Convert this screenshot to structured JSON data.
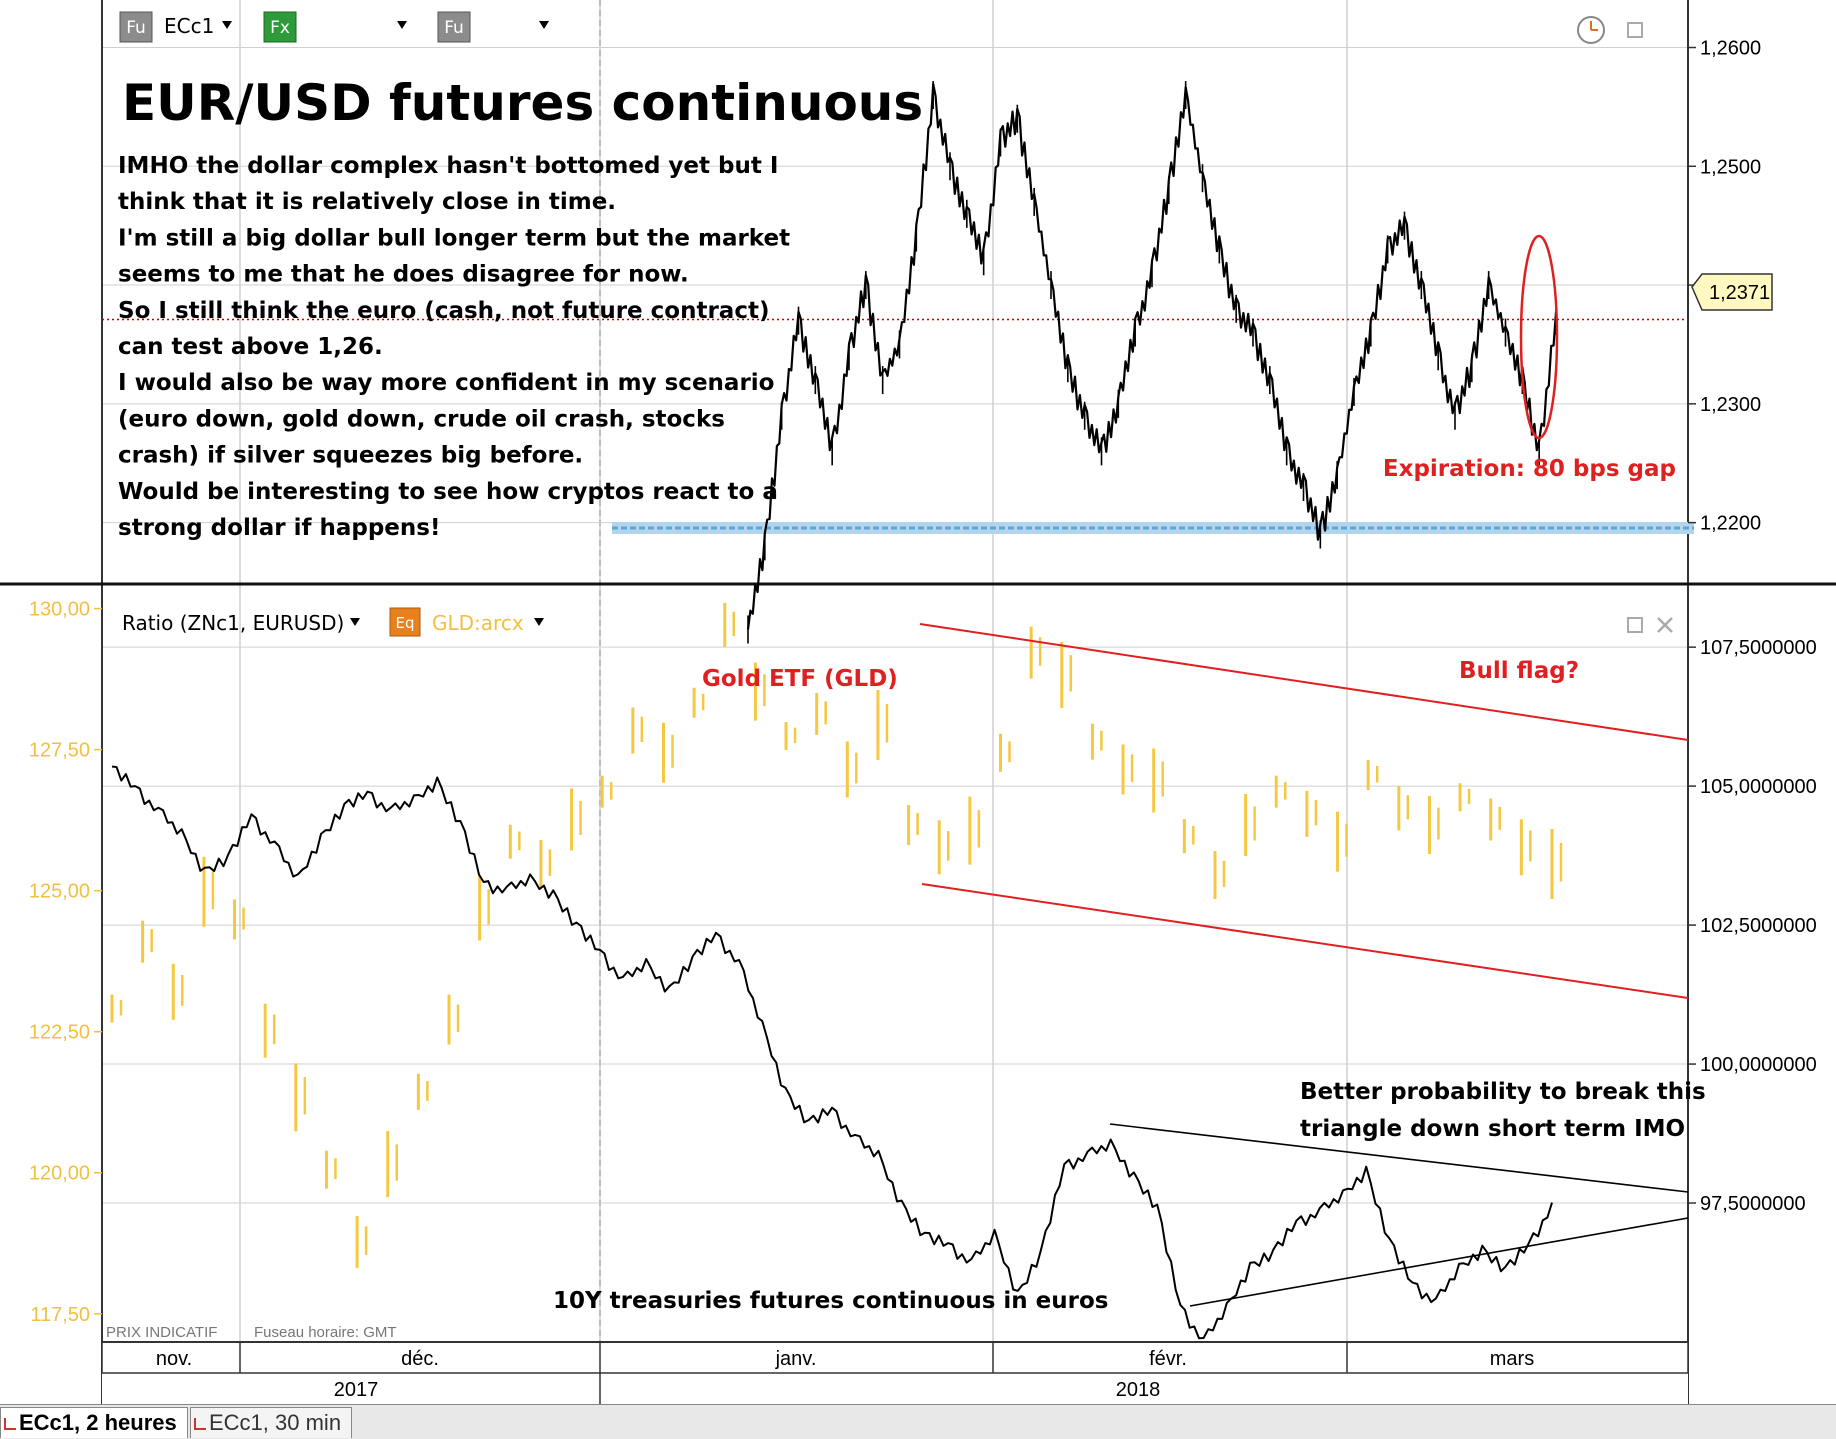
{
  "top_toolbar": {
    "symbol_1_badge": "Fu",
    "symbol_1": "ECc1",
    "symbol_2_badge": "Fx",
    "symbol_3_badge": "Fu"
  },
  "bottom_toolbar": {
    "series_1": "Ratio (ZNc1, EURUSD)",
    "series_2_badge": "Eq",
    "series_2": "GLD:arcx"
  },
  "annotations": {
    "headline": "EUR/USD futures continuous",
    "commentary": [
      "IMHO the dollar complex hasn't bottomed yet but I",
      "think that it is relatively close in time.",
      "I'm still a big dollar bull longer term but the market",
      "seems to me that he does disagree for now.",
      "So I still think the euro (cash, not future contract)",
      "can test above 1,26.",
      "I would also be way more confident in my scenario",
      "(euro down, gold down, crude oil crash, stocks",
      "crash) if silver squeezes big before.",
      "Would be interesting to see how cryptos react to a",
      "strong dollar if happens!"
    ],
    "expiration": "Expiration: 80 bps gap",
    "gold_label": "Gold ETF (GLD)",
    "bull_flag": "Bull flag?",
    "triangle_1": "Better probability to break this",
    "triangle_2": "triangle down short term IMO",
    "treasuries": "10Y treasuries futures continuous in euros",
    "footer_price": "PRIX INDICATIF",
    "footer_tz": "Fuseau horaire: GMT"
  },
  "tabs": [
    {
      "label": "ECc1, 2 heures",
      "active": true
    },
    {
      "label": "ECc1, 30 min",
      "active": false
    }
  ],
  "colors": {
    "eurusd": "#000000",
    "ratio": "#000000",
    "gld": "#f5c842",
    "annotation_red": "#e02020",
    "price_line": "#cc0000",
    "grid": "#c8c8c8"
  },
  "chart_data": [
    {
      "type": "line",
      "series": [
        {
          "name": "ECc1",
          "values": [
            1.211,
            1.218,
            1.229,
            1.237,
            1.232,
            1.226,
            1.234,
            1.24,
            1.232,
            1.235,
            1.244,
            1.256,
            1.25,
            1.246,
            1.242,
            1.252,
            1.254,
            1.247,
            1.24,
            1.233,
            1.229,
            1.226,
            1.23,
            1.236,
            1.241,
            1.248,
            1.256,
            1.249,
            1.243,
            1.238,
            1.236,
            1.232,
            1.226,
            1.223,
            1.219,
            1.224,
            1.231,
            1.236,
            1.243,
            1.245,
            1.24,
            1.234,
            1.229,
            1.233,
            1.24,
            1.236,
            1.232,
            1.226,
            1.237
          ]
        }
      ],
      "x_range": [
        "2017-12-28",
        "2018-03-16"
      ],
      "ylim": [
        1.215,
        1.264
      ],
      "y_ticks": [
        "1,2200",
        "1,2300",
        "1,2400",
        "1,2500",
        "1,2600"
      ],
      "last_price": "1,2371",
      "grid": true
    },
    {
      "type": "line",
      "series": [
        {
          "name": "Ratio (ZNc1, EURUSD)",
          "axis": "left",
          "values": [
            127.2,
            126.8,
            126.4,
            126.0,
            125.3,
            125.6,
            126.3,
            125.8,
            125.2,
            125.9,
            126.5,
            126.7,
            126.4,
            126.6,
            126.9,
            126.2,
            125.1,
            125.0,
            125.2,
            124.9,
            124.4,
            123.9,
            123.4,
            123.7,
            123.2,
            123.8,
            124.2,
            123.7,
            122.6,
            121.4,
            120.9,
            121.1,
            120.6,
            120.3,
            119.4,
            118.9,
            118.7,
            118.4,
            118.9,
            117.8,
            118.6,
            120.1,
            120.3,
            120.5,
            119.9,
            119.4,
            117.6,
            117.0,
            117.6,
            118.3,
            118.6,
            119.1,
            119.3,
            119.6,
            120.0,
            118.8,
            118.0,
            117.7,
            118.3,
            118.6,
            118.3,
            118.7,
            119.4
          ]
        },
        {
          "name": "GLD:arcx",
          "axis": "right",
          "values": [
            101.0,
            102.2,
            101.3,
            103.1,
            102.6,
            100.6,
            99.4,
            98.1,
            96.8,
            98.2,
            99.5,
            100.8,
            102.8,
            104.0,
            103.6,
            104.4,
            104.9,
            106.0,
            105.6,
            106.5,
            107.9,
            106.7,
            105.9,
            106.3,
            105.3,
            106.1,
            104.3,
            103.9,
            104.2,
            105.6,
            107.4,
            107.0,
            105.8,
            105.3,
            105.1,
            104.1,
            103.4,
            104.3,
            104.9,
            104.5,
            104.0,
            105.2,
            104.6,
            104.3,
            104.8,
            104.4,
            103.9,
            103.6
          ]
        }
      ],
      "ylim_left": [
        117.0,
        130.4
      ],
      "ylim_right": [
        95.0,
        108.6
      ],
      "y_ticks_left": [
        "117,50",
        "120,00",
        "122,50",
        "125,00",
        "127,50",
        "130,00"
      ],
      "y_ticks_right": [
        "97,5000000",
        "100,0000000",
        "102,5000000",
        "105,0000000",
        "107,5000000"
      ],
      "grid": true
    }
  ],
  "time_axis": {
    "months": [
      "nov.",
      "déc.",
      "janv.",
      "févr.",
      "mars"
    ],
    "years": [
      "2017",
      "2018"
    ]
  }
}
